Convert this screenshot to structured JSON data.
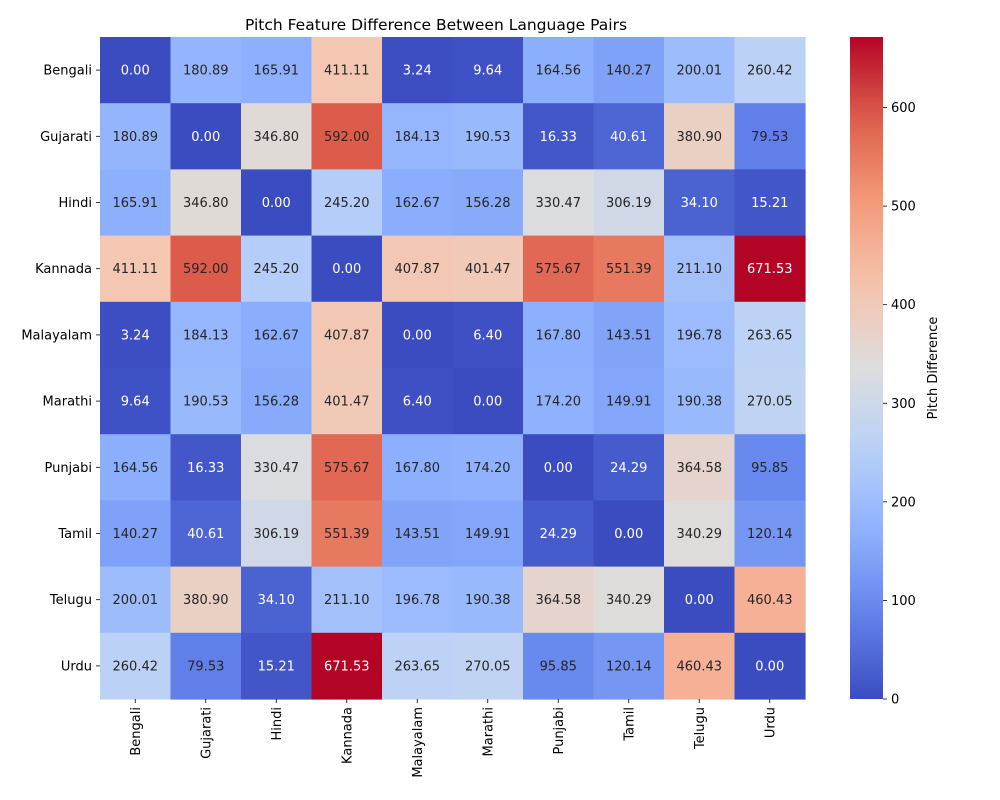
{
  "chart_data": {
    "type": "heatmap",
    "title": "Pitch Feature Difference Between Language Pairs",
    "row_labels": [
      "Bengali",
      "Gujarati",
      "Hindi",
      "Kannada",
      "Malayalam",
      "Marathi",
      "Punjabi",
      "Tamil",
      "Telugu",
      "Urdu"
    ],
    "col_labels": [
      "Bengali",
      "Gujarati",
      "Hindi",
      "Kannada",
      "Malayalam",
      "Marathi",
      "Punjabi",
      "Tamil",
      "Telugu",
      "Urdu"
    ],
    "values": [
      [
        0.0,
        180.89,
        165.91,
        411.11,
        3.24,
        9.64,
        164.56,
        140.27,
        200.01,
        260.42
      ],
      [
        180.89,
        0.0,
        346.8,
        592.0,
        184.13,
        190.53,
        16.33,
        40.61,
        380.9,
        79.53
      ],
      [
        165.91,
        346.8,
        0.0,
        245.2,
        162.67,
        156.28,
        330.47,
        306.19,
        34.1,
        15.21
      ],
      [
        411.11,
        592.0,
        245.2,
        0.0,
        407.87,
        401.47,
        575.67,
        551.39,
        211.1,
        671.53
      ],
      [
        3.24,
        184.13,
        162.67,
        407.87,
        0.0,
        6.4,
        167.8,
        143.51,
        196.78,
        263.65
      ],
      [
        9.64,
        190.53,
        156.28,
        401.47,
        6.4,
        0.0,
        174.2,
        149.91,
        190.38,
        270.05
      ],
      [
        164.56,
        16.33,
        330.47,
        575.67,
        167.8,
        174.2,
        0.0,
        24.29,
        364.58,
        95.85
      ],
      [
        140.27,
        40.61,
        306.19,
        551.39,
        143.51,
        149.91,
        24.29,
        0.0,
        340.29,
        120.14
      ],
      [
        200.01,
        380.9,
        34.1,
        211.1,
        196.78,
        190.38,
        364.58,
        340.29,
        0.0,
        460.43
      ],
      [
        260.42,
        79.53,
        15.21,
        671.53,
        263.65,
        270.05,
        95.85,
        120.14,
        460.43,
        0.0
      ]
    ],
    "colorbar": {
      "label": "Pitch Difference",
      "vmin": 0,
      "vmax": 671.53,
      "ticks": [
        0,
        100,
        200,
        300,
        400,
        500,
        600
      ],
      "colormap": "coolwarm"
    },
    "value_format": "2 decimals"
  }
}
